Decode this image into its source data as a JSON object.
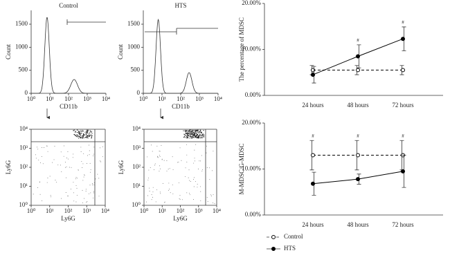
{
  "chart_data": [
    {
      "type": "flow-histogram",
      "title": "Control",
      "xlabel": "CD11b",
      "ylabel": "Count",
      "log_x": true,
      "xlim": [
        1,
        10000
      ],
      "xticks": [
        {
          "value": 1,
          "label": "10⁰"
        },
        {
          "value": 10,
          "label": "10¹"
        },
        {
          "value": 100,
          "label": "10²"
        },
        {
          "value": 1000,
          "label": "10³"
        },
        {
          "value": 10000,
          "label": "10⁴"
        }
      ],
      "ylim": [
        0,
        1800
      ],
      "yticks": [
        0,
        500,
        1000,
        1500
      ]
    },
    {
      "type": "flow-histogram",
      "title": "HTS",
      "xlabel": "CD11b",
      "ylabel": "Count",
      "log_x": true,
      "xlim": [
        1,
        10000
      ],
      "xticks": [
        {
          "value": 1,
          "label": "10⁰"
        },
        {
          "value": 10,
          "label": "10¹"
        },
        {
          "value": 100,
          "label": "10²"
        },
        {
          "value": 1000,
          "label": "10³"
        },
        {
          "value": 10000,
          "label": "10⁴"
        }
      ],
      "ylim": [
        0,
        1800
      ],
      "yticks": [
        0,
        500,
        1000,
        1500
      ]
    },
    {
      "type": "flow-scatter",
      "xlabel": "Ly6G",
      "ylabel": "Ly6G",
      "log_x": true,
      "log_y": true,
      "xlim": [
        1,
        10000
      ],
      "xticks": [
        {
          "value": 1,
          "label": "10⁰"
        },
        {
          "value": 10,
          "label": "10¹"
        },
        {
          "value": 100,
          "label": "10²"
        },
        {
          "value": 1000,
          "label": "10³"
        },
        {
          "value": 10000,
          "label": "10⁴"
        }
      ],
      "ylim": [
        1,
        10000
      ],
      "yticks": [
        {
          "value": 1,
          "label": "10⁰"
        },
        {
          "value": 10,
          "label": "10¹"
        },
        {
          "value": 100,
          "label": "10²"
        },
        {
          "value": 1000,
          "label": "10³"
        },
        {
          "value": 10000,
          "label": "10⁴"
        }
      ]
    },
    {
      "type": "flow-scatter",
      "xlabel": "Ly6G",
      "ylabel": "Ly6G",
      "log_x": true,
      "log_y": true,
      "xlim": [
        1,
        10000
      ],
      "xticks": [
        {
          "value": 1,
          "label": "10⁰"
        },
        {
          "value": 10,
          "label": "10¹"
        },
        {
          "value": 100,
          "label": "10²"
        },
        {
          "value": 1000,
          "label": "10³"
        },
        {
          "value": 10000,
          "label": "10⁴"
        }
      ],
      "ylim": [
        1,
        10000
      ],
      "yticks": [
        {
          "value": 1,
          "label": "10⁰"
        },
        {
          "value": 10,
          "label": "10¹"
        },
        {
          "value": 100,
          "label": "10²"
        },
        {
          "value": 1000,
          "label": "10³"
        },
        {
          "value": 10000,
          "label": "10⁴"
        }
      ]
    },
    {
      "type": "line",
      "ylabel": "The percentage of MDSC",
      "categories": [
        "24 hours",
        "48 hours",
        "72 hours"
      ],
      "ylim": [
        0,
        20
      ],
      "yticks": [
        {
          "value": 0,
          "label": "0.00%"
        },
        {
          "value": 10,
          "label": "10.00%"
        },
        {
          "value": 20,
          "label": "20.00%"
        }
      ],
      "series": [
        {
          "color": "#000000",
          "dashed": true,
          "marker": "open",
          "values": [
            5.5,
            5.5,
            5.5
          ],
          "errors": [
            1,
            1,
            1
          ]
        },
        {
          "color": "#000000",
          "dashed": false,
          "marker": "filled",
          "values": [
            4.5,
            8.5,
            12.3
          ],
          "errors": [
            1.8,
            2.5,
            2.6
          ]
        }
      ],
      "annotations": [
        {
          "label": "#",
          "category": "48 hours"
        },
        {
          "label": "#",
          "category": "72 hours"
        }
      ]
    },
    {
      "type": "line",
      "ylabel": "M-MDSC/G-MDSC",
      "categories": [
        "24 hours",
        "48 hours",
        "72 hours"
      ],
      "ylim": [
        0,
        20
      ],
      "yticks": [
        {
          "value": 0,
          "label": "0.00%"
        },
        {
          "value": 10,
          "label": "10.00%"
        },
        {
          "value": 20,
          "label": "20.00%"
        }
      ],
      "series": [
        {
          "name": "Control",
          "color": "#000000",
          "dashed": true,
          "marker": "open",
          "values": [
            13,
            13,
            13
          ],
          "errors": [
            3.2,
            3.2,
            3.2
          ]
        },
        {
          "name": "HTS",
          "color": "#000000",
          "dashed": false,
          "marker": "filled",
          "values": [
            6.8,
            7.8,
            9.5
          ],
          "errors": [
            2.5,
            1.1,
            3.5
          ]
        }
      ],
      "annotations": [
        {
          "label": "#",
          "category": "24 hours"
        },
        {
          "label": "#",
          "category": "48 hours"
        },
        {
          "label": "#",
          "category": "72 hours"
        }
      ]
    }
  ]
}
